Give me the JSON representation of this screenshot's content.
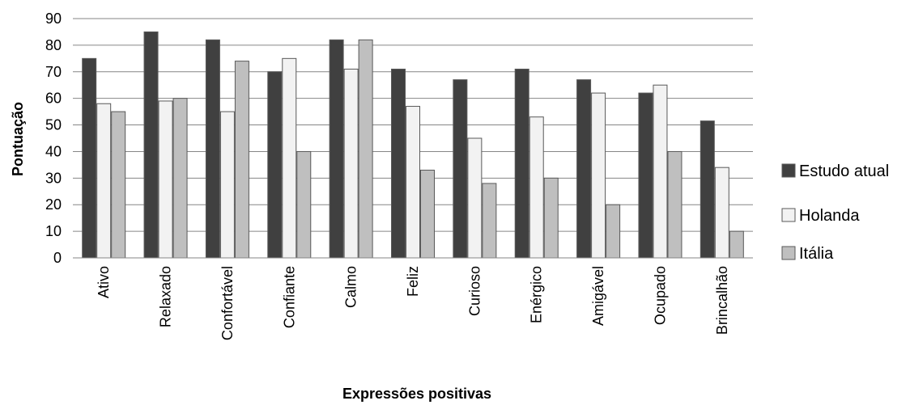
{
  "chart_data": {
    "type": "bar",
    "title": "",
    "xlabel": "Expressões positivas",
    "ylabel": "Pontuação",
    "ylim": [
      0,
      90
    ],
    "yticks": [
      0,
      10,
      20,
      30,
      40,
      50,
      60,
      70,
      80,
      90
    ],
    "grid": true,
    "legend_position": "right",
    "categories": [
      "Ativo",
      "Relaxado",
      "Confortável",
      "Confiante",
      "Calmo",
      "Feliz",
      "Curioso",
      "Enérgico",
      "Amigável",
      "Ocupado",
      "Brincalhão"
    ],
    "series": [
      {
        "name": "Estudo atual",
        "color": "#404040",
        "values": [
          75,
          85,
          82,
          70,
          82,
          71,
          67,
          71,
          67,
          62,
          51.5
        ]
      },
      {
        "name": "Holanda",
        "color": "#f2f2f2",
        "values": [
          58,
          59,
          55,
          75,
          71,
          57,
          45,
          53,
          62,
          65,
          34
        ]
      },
      {
        "name": "Itália",
        "color": "#bfbfbf",
        "values": [
          55,
          60,
          74,
          40,
          82,
          33,
          28,
          30,
          20,
          40,
          10
        ]
      }
    ]
  }
}
